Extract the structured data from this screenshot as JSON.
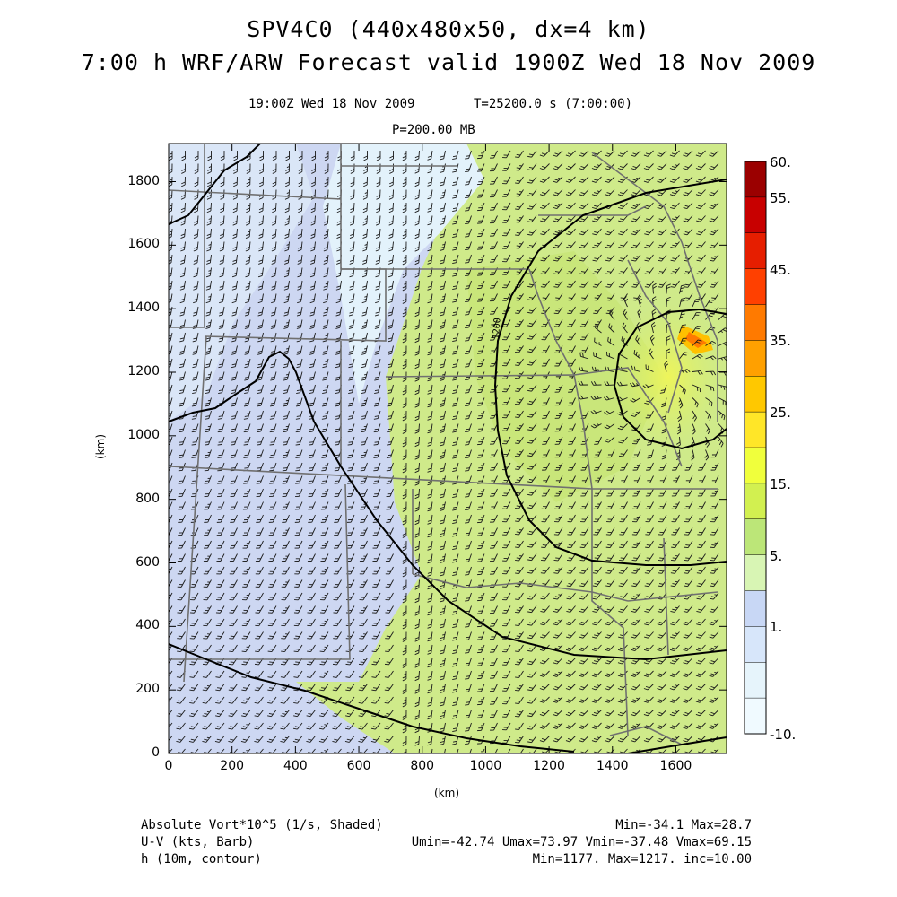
{
  "title": {
    "line1": "SPV4C0 (440x480x50, dx=4 km)",
    "line2": "7:00 h WRF/ARW Forecast valid 1900Z Wed 18 Nov 2009"
  },
  "subtitle": {
    "time": "19:00Z Wed 18 Nov 2009",
    "tval": "T=25200.0 s (7:00:00)",
    "level": "P=200.00 MB"
  },
  "axes": {
    "x_ticks": [
      "0",
      "200",
      "400",
      "600",
      "800",
      "1000",
      "1200",
      "1400",
      "1600"
    ],
    "y_ticks": [
      "0",
      "200",
      "400",
      "600",
      "800",
      "1000",
      "1200",
      "1400",
      "1600",
      "1800"
    ],
    "xlabel": "(km)",
    "ylabel": "(km)"
  },
  "colorbar": {
    "labels": [
      "60.",
      "55.",
      "45.",
      "35.",
      "25.",
      "15.",
      "5.",
      "1.",
      "-10."
    ],
    "colors": [
      "#9b0000",
      "#c80000",
      "#e61e00",
      "#ff4000",
      "#ff7a00",
      "#ffa000",
      "#ffc800",
      "#ffe628",
      "#f0ff3c",
      "#d2f050",
      "#bce678",
      "#d8f5b4",
      "#c8d7f5",
      "#d7e6fa",
      "#e6f4fb",
      "#f0faff"
    ]
  },
  "contour": {
    "label": "1200"
  },
  "footer": {
    "row1_left": "Absolute Vort*10^5 (1/s, Shaded)",
    "row1_right": "Min=-34.1 Max=28.7",
    "row2_left": "U-V (kts, Barb)",
    "row2_right": "Umin=-42.74 Umax=73.97 Vmin=-37.48 Vmax=69.15",
    "row3_left": "h (10m, contour)",
    "row3_right": "Min=1177. Max=1217. inc=10.00"
  }
}
